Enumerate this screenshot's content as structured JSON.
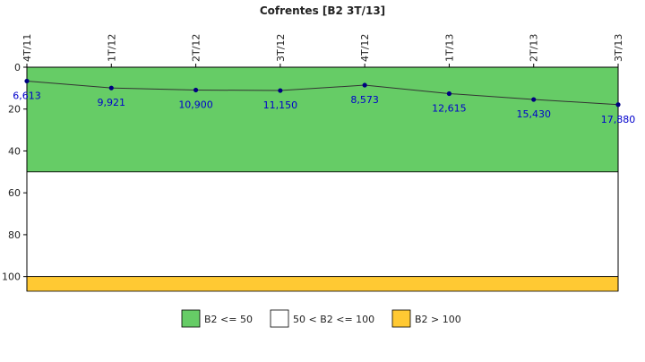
{
  "chart_data": {
    "type": "line",
    "title": "Cofrentes [B2 3T/13]",
    "x": [
      "4T/11",
      "1T/12",
      "2T/12",
      "3T/12",
      "4T/12",
      "1T/13",
      "2T/13",
      "3T/13"
    ],
    "series": [
      {
        "values": [
          6.613,
          9.921,
          10.9,
          11.15,
          8.573,
          12.615,
          15.43,
          17.88
        ],
        "labels": [
          "6,613",
          "9,921",
          "10,900",
          "11,150",
          "8,573",
          "12,615",
          "15,430",
          "17,880"
        ],
        "color": "#000080"
      }
    ],
    "yticks": [
      "0",
      "20",
      "40",
      "60",
      "80",
      "100"
    ],
    "ylim": [
      0,
      107
    ],
    "y_inverted": true,
    "bands": [
      {
        "label": "B2 <= 50",
        "from": 0,
        "to": 50,
        "color": "#66cc66"
      },
      {
        "label": "50 < B2 <= 100",
        "from": 50,
        "to": 100,
        "color": "#ffffff"
      },
      {
        "label": "B2 > 100",
        "from": 100,
        "to": 107,
        "color": "#ffc933"
      }
    ],
    "legend_position": "bottom",
    "grid": false,
    "line_color": "#333333",
    "label_color": "#0000cc"
  }
}
